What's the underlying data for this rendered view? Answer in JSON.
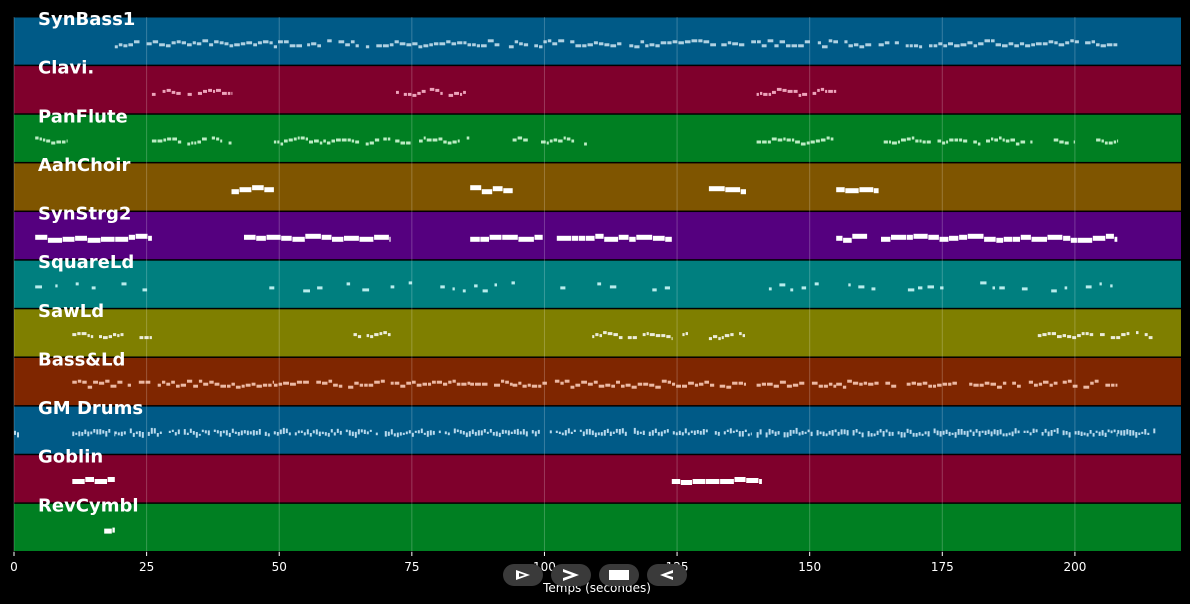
{
  "chart_data": {
    "type": "piano-roll",
    "title": "",
    "xlabel": "Temps (secondes)",
    "xlim": [
      0,
      220
    ],
    "x_ticks": [
      0,
      25,
      50,
      75,
      100,
      125,
      150,
      175,
      200
    ],
    "grid": true,
    "tracks": [
      {
        "name": "SynBass1",
        "color": "#005a87",
        "note_color": "#cfe6f2",
        "style": "dense",
        "segments": [
          [
            19,
            208
          ]
        ]
      },
      {
        "name": "Clavi.",
        "color": "#7f002c",
        "note_color": "#ffc0d4",
        "style": "run",
        "segments": [
          [
            26,
            41
          ],
          [
            71,
            86
          ],
          [
            140,
            155
          ]
        ]
      },
      {
        "name": "PanFlute",
        "color": "#007f22",
        "note_color": "#ddffe0",
        "style": "run",
        "segments": [
          [
            4,
            10
          ],
          [
            26,
            41
          ],
          [
            49,
            71
          ],
          [
            71,
            86
          ],
          [
            94,
            108
          ],
          [
            140,
            155
          ],
          [
            163,
            192
          ],
          [
            196,
            200
          ],
          [
            204,
            208
          ]
        ]
      },
      {
        "name": "AahChoir",
        "color": "#7f5500",
        "note_color": "#ffffff",
        "style": "long",
        "segments": [
          [
            41,
            49
          ],
          [
            86,
            94
          ],
          [
            131,
            138
          ],
          [
            155,
            163
          ]
        ]
      },
      {
        "name": "SynStrg2",
        "color": "#55007f",
        "note_color": "#ffffff",
        "style": "long",
        "segments": [
          [
            4,
            26
          ],
          [
            41,
            71
          ],
          [
            86,
            124
          ],
          [
            155,
            208
          ]
        ]
      },
      {
        "name": "SquareLd",
        "color": "#007f7f",
        "note_color": "#d8ffff",
        "style": "sparse",
        "segments": [
          [
            4,
            26
          ],
          [
            41,
            71
          ],
          [
            71,
            98
          ],
          [
            101,
            124
          ],
          [
            140,
            208
          ]
        ]
      },
      {
        "name": "SawLd",
        "color": "#7f7f00",
        "note_color": "#ffffff",
        "style": "run",
        "segments": [
          [
            11,
            26
          ],
          [
            64,
            71
          ],
          [
            109,
            124
          ],
          [
            126,
            128
          ],
          [
            131,
            138
          ],
          [
            193,
            215
          ]
        ]
      },
      {
        "name": "Bass&Ld",
        "color": "#7f2600",
        "note_color": "#ffd2c0",
        "style": "dense",
        "segments": [
          [
            11,
            41
          ],
          [
            41,
            49
          ],
          [
            49,
            86
          ],
          [
            86,
            94
          ],
          [
            94,
            138
          ],
          [
            140,
            155
          ],
          [
            155,
            163
          ],
          [
            163,
            208
          ]
        ]
      },
      {
        "name": "GM Drums",
        "color": "#005a87",
        "note_color": "#d8f0ff",
        "style": "drums",
        "segments": [
          [
            0,
            1
          ],
          [
            11,
            19
          ],
          [
            19,
            139
          ],
          [
            140,
            208
          ],
          [
            208,
            216
          ]
        ]
      },
      {
        "name": "Goblin",
        "color": "#7f002c",
        "note_color": "#ffffff",
        "style": "long",
        "segments": [
          [
            11,
            19
          ],
          [
            124,
            141
          ]
        ]
      },
      {
        "name": "RevCymbl",
        "color": "#007f22",
        "note_color": "#ffffff",
        "style": "long",
        "segments": [
          [
            17,
            19
          ]
        ]
      }
    ]
  },
  "controls": [
    {
      "name": "record-start",
      "icon": "play-outline-icon"
    },
    {
      "name": "play",
      "icon": "play-icon"
    },
    {
      "name": "stop",
      "icon": "stop-icon"
    },
    {
      "name": "rewind",
      "icon": "rewind-icon"
    }
  ]
}
